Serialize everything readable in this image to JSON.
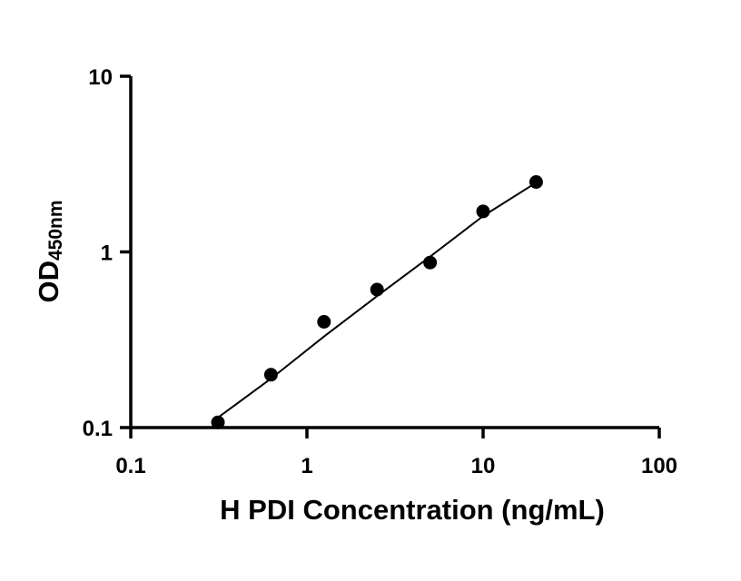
{
  "chart_data": {
    "type": "scatter",
    "x_scale": "log",
    "y_scale": "log",
    "xlim": [
      0.1,
      100
    ],
    "ylim": [
      0.1,
      10
    ],
    "x_ticks": [
      0.1,
      1,
      10,
      100
    ],
    "x_tick_labels": [
      "0.1",
      "1",
      "10",
      "100"
    ],
    "y_ticks": [
      0.1,
      1,
      10
    ],
    "y_tick_labels": [
      "0.1",
      "1",
      "10"
    ],
    "xlabel": "H PDI Concentration (ng/mL)",
    "ylabel_main": "OD",
    "ylabel_sub": "450nm",
    "grid": false,
    "legend": "none",
    "series": [
      {
        "x": [
          0.3125,
          0.625,
          1.25,
          2.5,
          5,
          10,
          20
        ],
        "y": [
          0.107,
          0.2,
          0.4,
          0.61,
          0.87,
          1.7,
          2.5
        ]
      }
    ],
    "fit_curve": {
      "x": [
        0.3125,
        0.625,
        1.25,
        2.5,
        5,
        10,
        20
      ],
      "y": [
        0.114,
        0.19,
        0.33,
        0.56,
        0.94,
        1.6,
        2.48
      ]
    },
    "colors": {
      "marker": "#000000",
      "line": "#000000",
      "axis": "#000000"
    }
  }
}
